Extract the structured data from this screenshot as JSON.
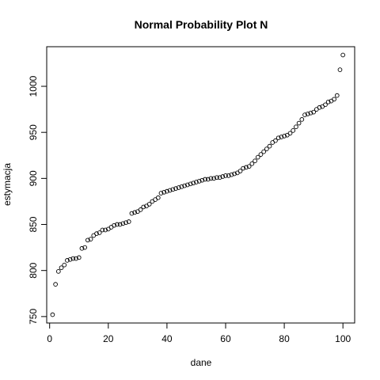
{
  "chart_data": {
    "type": "scatter",
    "title": "Normal Probability Plot N",
    "xlabel": "dane",
    "ylabel": "estymacja",
    "xlim": [
      -1,
      104
    ],
    "ylim": [
      743,
      1043
    ],
    "xticks": [
      0,
      20,
      40,
      60,
      80,
      100
    ],
    "yticks": [
      750,
      800,
      850,
      900,
      950,
      1000
    ],
    "grid": false,
    "legend": "none",
    "x": [
      1,
      2,
      3,
      4,
      5,
      6,
      7,
      8,
      9,
      10,
      11,
      12,
      13,
      14,
      15,
      16,
      17,
      18,
      19,
      20,
      21,
      22,
      23,
      24,
      25,
      26,
      27,
      28,
      29,
      30,
      31,
      32,
      33,
      34,
      35,
      36,
      37,
      38,
      39,
      40,
      41,
      42,
      43,
      44,
      45,
      46,
      47,
      48,
      49,
      50,
      51,
      52,
      53,
      54,
      55,
      56,
      57,
      58,
      59,
      60,
      61,
      62,
      63,
      64,
      65,
      66,
      67,
      68,
      69,
      70,
      71,
      72,
      73,
      74,
      75,
      76,
      77,
      78,
      79,
      80,
      81,
      82,
      83,
      84,
      85,
      86,
      87,
      88,
      89,
      90,
      91,
      92,
      93,
      94,
      95,
      96,
      97,
      98,
      99,
      100
    ],
    "y": [
      752,
      785,
      799,
      803,
      806,
      811,
      812,
      813,
      813,
      814,
      824,
      825,
      833,
      834,
      838,
      840,
      841,
      844,
      844,
      845,
      847,
      849,
      850,
      850,
      851,
      852,
      853,
      862,
      863,
      864,
      866,
      869,
      870,
      872,
      875,
      877,
      879,
      884,
      885,
      886,
      887,
      888,
      889,
      890,
      891,
      892,
      893,
      894,
      895,
      896,
      897,
      898,
      899,
      899,
      900,
      900,
      901,
      901,
      902,
      903,
      903,
      904,
      905,
      906,
      908,
      911,
      912,
      913,
      916,
      919,
      923,
      926,
      929,
      932,
      935,
      939,
      941,
      944,
      945,
      946,
      947,
      949,
      952,
      956,
      960,
      964,
      969,
      970,
      971,
      972,
      975,
      977,
      978,
      980,
      983,
      984,
      986,
      990,
      1018,
      1034
    ]
  }
}
